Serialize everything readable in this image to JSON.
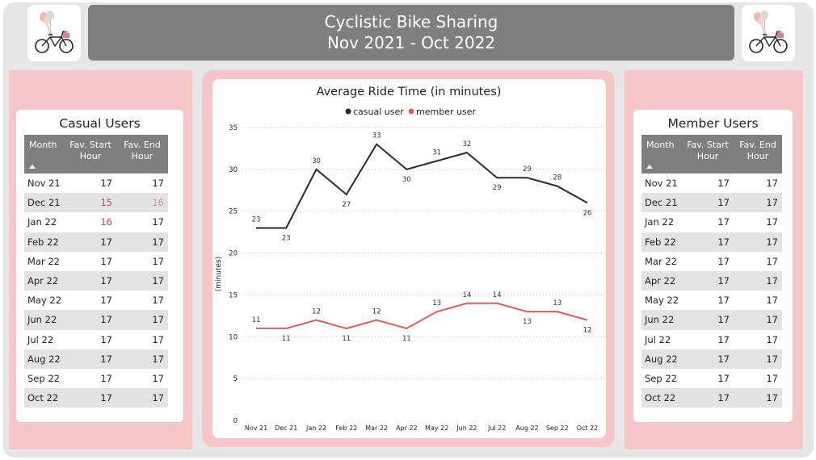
{
  "header": {
    "title_line1": "Cyclistic Bike Sharing",
    "title_line2": "Nov 2021 - Oct 2022"
  },
  "logo": {
    "icon": "bicycle-with-balloons-icon"
  },
  "colors": {
    "banner": "#7f7f7f",
    "panel_pink": "#f6c6c7",
    "casual_line": "#2b2b2b",
    "member_line": "#e05a5c",
    "highlight_red": "#c0454a",
    "highlight_pink": "#e8868a"
  },
  "casual_table": {
    "title": "Casual Users",
    "headers": [
      "Month",
      "Fav. Start Hour",
      "Fav. End Hour"
    ],
    "rows": [
      [
        "Nov 21",
        "17",
        "17"
      ],
      [
        "Dec 21",
        "15",
        "16"
      ],
      [
        "Jan 22",
        "16",
        "17"
      ],
      [
        "Feb 22",
        "17",
        "17"
      ],
      [
        "Mar 22",
        "17",
        "17"
      ],
      [
        "Apr 22",
        "17",
        "17"
      ],
      [
        "May 22",
        "17",
        "17"
      ],
      [
        "Jun 22",
        "17",
        "17"
      ],
      [
        "Jul 22",
        "17",
        "17"
      ],
      [
        "Aug 22",
        "17",
        "17"
      ],
      [
        "Sep 22",
        "17",
        "17"
      ],
      [
        "Oct 22",
        "17",
        "17"
      ]
    ]
  },
  "member_table": {
    "title": "Member Users",
    "headers": [
      "Month",
      "Fav. Start Hour",
      "Fav. End Hour"
    ],
    "rows": [
      [
        "Nov 21",
        "17",
        "17"
      ],
      [
        "Dec 21",
        "17",
        "17"
      ],
      [
        "Jan 22",
        "17",
        "17"
      ],
      [
        "Feb 22",
        "17",
        "17"
      ],
      [
        "Mar 22",
        "17",
        "17"
      ],
      [
        "Apr 22",
        "17",
        "17"
      ],
      [
        "May 22",
        "17",
        "17"
      ],
      [
        "Jun 22",
        "17",
        "17"
      ],
      [
        "Jul 22",
        "17",
        "17"
      ],
      [
        "Aug 22",
        "17",
        "17"
      ],
      [
        "Sep 22",
        "17",
        "17"
      ],
      [
        "Oct 22",
        "17",
        "17"
      ]
    ]
  },
  "chart_data": {
    "type": "line",
    "title": "Average Ride Time (in minutes)",
    "xlabel": "",
    "ylabel": "(minutes)",
    "ylim": [
      0,
      35
    ],
    "yticks": [
      0,
      5,
      10,
      15,
      20,
      25,
      30,
      35
    ],
    "grid": true,
    "legend_position": "top-center",
    "categories": [
      "Nov 21",
      "Dec 21",
      "Jan 22",
      "Feb 22",
      "Mar 22",
      "Apr 22",
      "May 22",
      "Jun 22",
      "Jul 22",
      "Aug 22",
      "Sep 22",
      "Oct 22"
    ],
    "series": [
      {
        "name": "casual user",
        "values": [
          23,
          23,
          30,
          27,
          33,
          30,
          31,
          32,
          29,
          29,
          28,
          26
        ]
      },
      {
        "name": "member user",
        "values": [
          11,
          11,
          12,
          11,
          12,
          11,
          13,
          14,
          14,
          13,
          13,
          12
        ]
      }
    ]
  }
}
